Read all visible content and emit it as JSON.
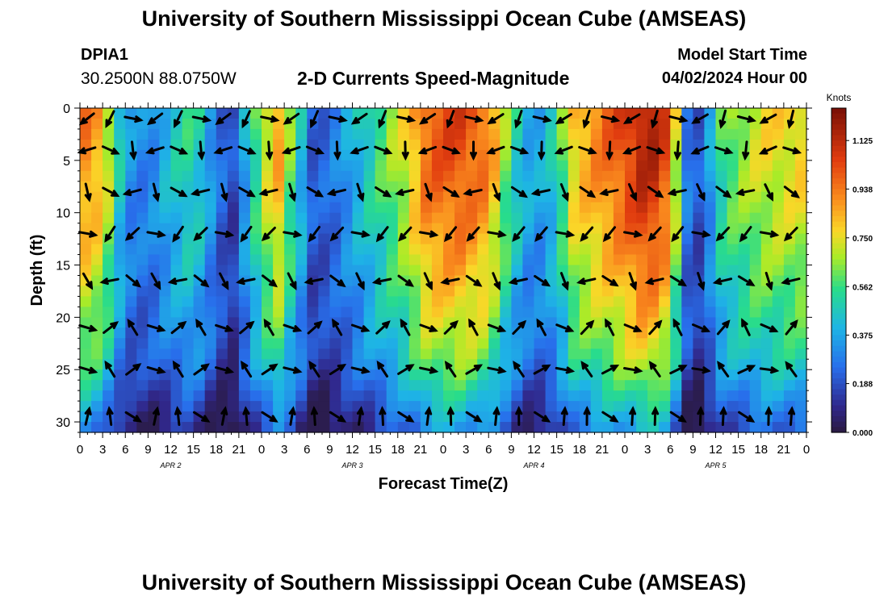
{
  "header": {
    "title": "University of Southern Mississippi Ocean Cube (AMSEAS)",
    "station": "DPIA1",
    "coordinates": "30.2500N  88.0750W",
    "plot_title": "2-D Currents Speed-Magnitude",
    "start_label": "Model Start Time",
    "start_value": "04/02/2024 Hour 00"
  },
  "footer": {
    "title": "University of Southern Mississippi Ocean Cube (AMSEAS)"
  },
  "chart_data": {
    "type": "heatmap",
    "title": "2-D Currents Speed-Magnitude",
    "xlabel": "Forecast Time(Z)",
    "ylabel": "Depth (ft)",
    "x_range_hours": [
      0,
      96
    ],
    "y_range_ft": [
      0,
      31
    ],
    "x_tick_labels": [
      "0",
      "3",
      "6",
      "9",
      "12",
      "15",
      "18",
      "21",
      "0",
      "3",
      "6",
      "9",
      "12",
      "15",
      "18",
      "21",
      "0",
      "3",
      "6",
      "9",
      "12",
      "15",
      "18",
      "21",
      "0",
      "3",
      "6",
      "9",
      "12",
      "15",
      "18",
      "21",
      "0"
    ],
    "y_tick_labels": [
      "0",
      "5",
      "10",
      "15",
      "20",
      "25",
      "30"
    ],
    "date_labels": [
      {
        "label": "APR 2",
        "hour": 12
      },
      {
        "label": "APR 3",
        "hour": 36
      },
      {
        "label": "APR 4",
        "hour": 60
      },
      {
        "label": "APR 5",
        "hour": 84
      }
    ],
    "colorbar": {
      "unit": "Knots",
      "ticks": [
        "1.125",
        "0.938",
        "0.750",
        "0.562",
        "0.375",
        "0.188",
        "0.000"
      ],
      "range": [
        0,
        1.25
      ]
    },
    "surface_speed_profile_knots": [
      {
        "hour": 0,
        "speed": 0.95
      },
      {
        "hour": 3,
        "speed": 0.85
      },
      {
        "hour": 6,
        "speed": 0.35
      },
      {
        "hour": 9,
        "speed": 0.3
      },
      {
        "hour": 12,
        "speed": 0.45
      },
      {
        "hour": 15,
        "speed": 0.55
      },
      {
        "hour": 18,
        "speed": 0.3
      },
      {
        "hour": 20,
        "speed": 0.15
      },
      {
        "hour": 23,
        "speed": 0.55
      },
      {
        "hour": 26,
        "speed": 0.9
      },
      {
        "hour": 28,
        "speed": 0.6
      },
      {
        "hour": 31,
        "speed": 0.2
      },
      {
        "hour": 34,
        "speed": 0.3
      },
      {
        "hour": 39,
        "speed": 0.55
      },
      {
        "hour": 43,
        "speed": 0.75
      },
      {
        "hour": 46,
        "speed": 1.0
      },
      {
        "hour": 50,
        "speed": 1.05
      },
      {
        "hour": 54,
        "speed": 0.95
      },
      {
        "hour": 57,
        "speed": 0.55
      },
      {
        "hour": 60,
        "speed": 0.35
      },
      {
        "hour": 63,
        "speed": 0.5
      },
      {
        "hour": 65,
        "speed": 0.8
      },
      {
        "hour": 69,
        "speed": 0.95
      },
      {
        "hour": 72,
        "speed": 1.05
      },
      {
        "hour": 75,
        "speed": 1.2
      },
      {
        "hour": 78,
        "speed": 1.0
      },
      {
        "hour": 80,
        "speed": 0.3
      },
      {
        "hour": 82,
        "speed": 0.2
      },
      {
        "hour": 85,
        "speed": 0.6
      },
      {
        "hour": 90,
        "speed": 0.75
      },
      {
        "hour": 96,
        "speed": 0.8
      }
    ],
    "direction_arrows_every_hours": 3,
    "direction_arrow_depth_levels_ft": [
      1,
      4,
      8,
      12,
      16.5,
      21,
      25,
      29.5
    ]
  }
}
